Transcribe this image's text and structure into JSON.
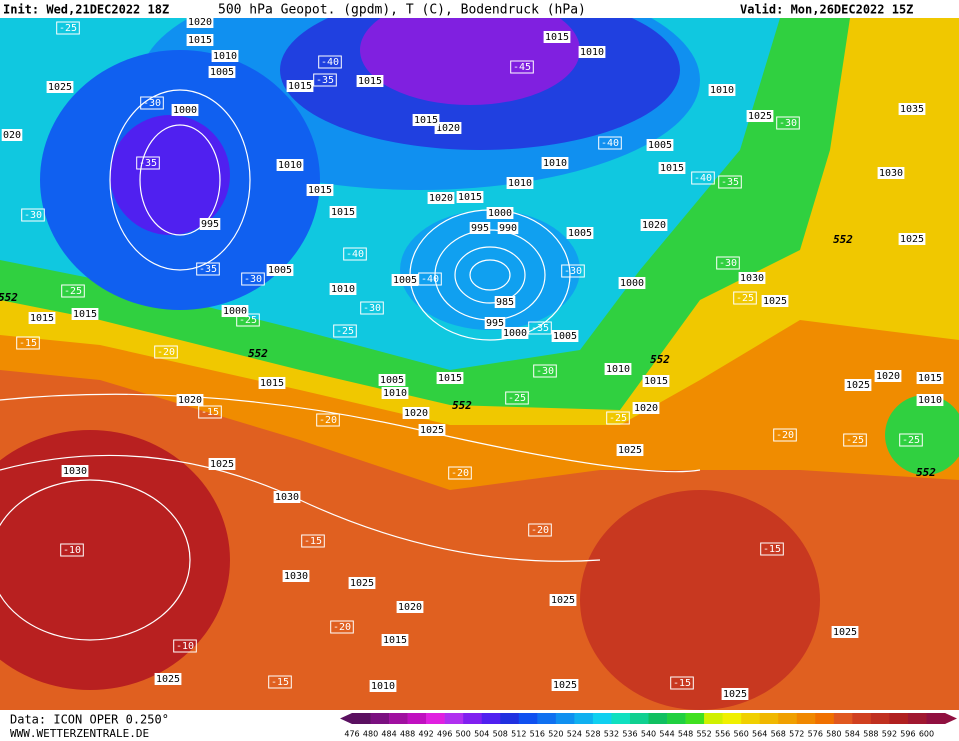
{
  "header": {
    "init": "Init: Wed,21DEC2022 18Z",
    "title": "500 hPa Geopot. (gpdm), T (C), Bodendruck (hPa)",
    "valid": "Valid: Mon,26DEC2022 15Z"
  },
  "footer": {
    "source": "Data: ICON OPER 0.250°",
    "website": "WWW.WETTERZENTRALE.DE"
  },
  "colorbar": {
    "levels": [
      476,
      480,
      484,
      488,
      492,
      496,
      500,
      504,
      508,
      512,
      516,
      520,
      524,
      528,
      532,
      536,
      540,
      544,
      548,
      552,
      556,
      560,
      564,
      568,
      572,
      576,
      580,
      584,
      588,
      592,
      596,
      600
    ],
    "colors": [
      "#5a1060",
      "#7a1080",
      "#a010a0",
      "#c010c0",
      "#e020e0",
      "#b030f0",
      "#8020f0",
      "#5020f0",
      "#2030e0",
      "#1050f0",
      "#1070f0",
      "#1090f0",
      "#10b0f0",
      "#10d0f0",
      "#10e0c0",
      "#10d090",
      "#10c060",
      "#20d040",
      "#40e020",
      "#d0f000",
      "#f0f000",
      "#f0d000",
      "#f0b800",
      "#f0a000",
      "#f08800",
      "#f07000",
      "#e05820",
      "#d04020",
      "#c03020",
      "#b02020",
      "#a01830",
      "#901040"
    ]
  },
  "isobar_labels": [
    "1020",
    "1015",
    "1010",
    "1005",
    "1025",
    "1000",
    "995",
    "1005",
    "1000",
    "1015",
    "1015",
    "1015",
    "1020",
    "1025",
    "1030",
    "1030",
    "1030",
    "1025",
    "1020",
    "1015",
    "1010",
    "1025",
    "1015",
    "1015",
    "1010",
    "1015",
    "1015",
    "1010",
    "1005",
    "1005",
    "1010",
    "1015",
    "1020",
    "1025",
    "995",
    "990",
    "1000",
    "985",
    "995",
    "1000",
    "1005",
    "1005",
    "1010",
    "1010",
    "1015",
    "1010",
    "1015",
    "1020",
    "1020",
    "1015",
    "1005",
    "1015",
    "1010",
    "1025",
    "1035",
    "1030",
    "1025",
    "1030",
    "1025",
    "1000",
    "1020",
    "1010",
    "1015",
    "1020",
    "1025",
    "1025",
    "1020",
    "1015",
    "1010",
    "1025",
    "1025",
    "1025",
    "1025",
    "020"
  ],
  "temperature_labels": [
    "-25",
    "-30",
    "-35",
    "-30",
    "-35",
    "-30",
    "-25",
    "-15",
    "-20",
    "-25",
    "-35",
    "-40",
    "-45",
    "-40",
    "-40",
    "-35",
    "-30",
    "-30",
    "-25",
    "-40",
    "-40",
    "-30",
    "-25",
    "-30",
    "-35",
    "-30",
    "-25",
    "-25",
    "-20",
    "-15",
    "-20",
    "-20",
    "-20",
    "-25",
    "-25",
    "-10",
    "-15",
    "-15",
    "-20",
    "-10",
    "-15",
    "-15"
  ],
  "boundary_labels": [
    "552",
    "552",
    "552",
    "552",
    "552",
    "552"
  ]
}
